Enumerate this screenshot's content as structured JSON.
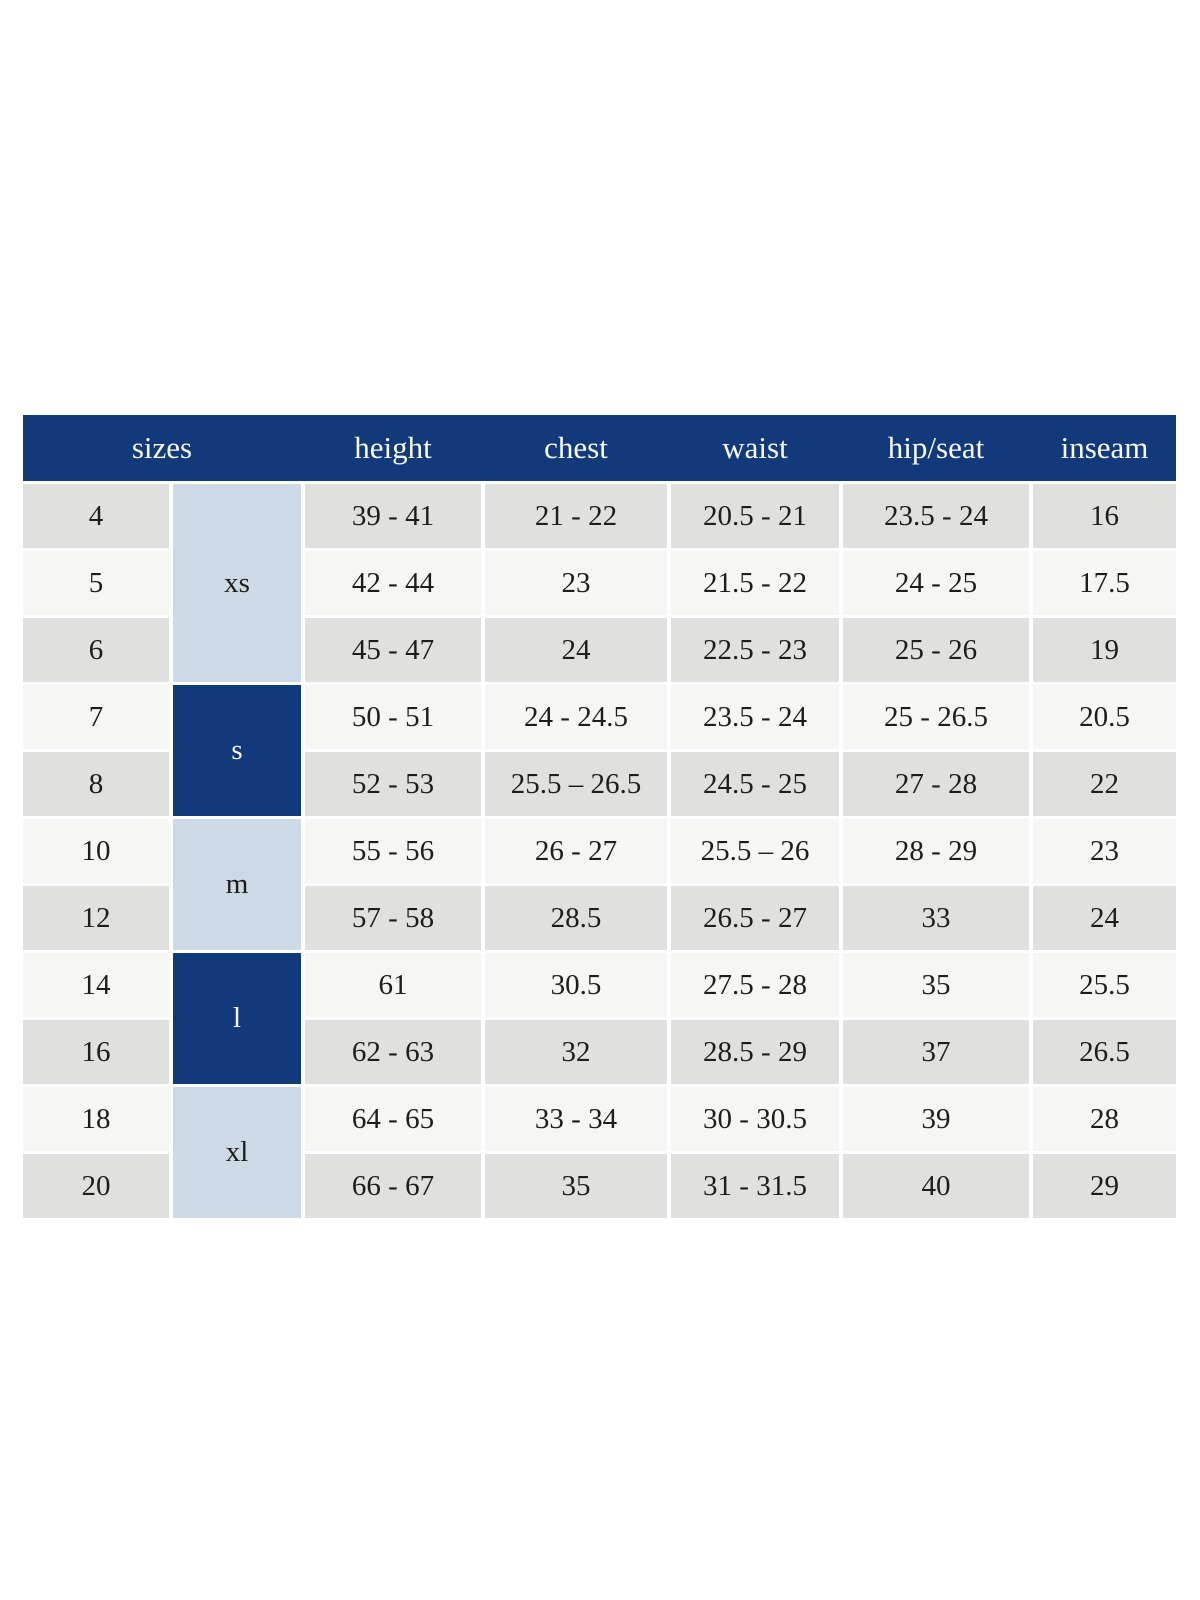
{
  "colors": {
    "header_bg": "#123a7b",
    "header_text": "#fafafa",
    "group_dark_bg": "#123a7b",
    "group_dark_text": "#ffffff",
    "group_light_bg": "#cdd9e5",
    "row_gray": "#e0e0df",
    "row_light": "#f6f6f5",
    "cell_text": "#1d1d1b",
    "page_bg": "#ffffff"
  },
  "table": {
    "columns": [
      "sizes",
      "height",
      "chest",
      "waist",
      "hip/seat",
      "inseam"
    ],
    "groups": [
      {
        "label": "xs",
        "tone": "light",
        "row_span": 3
      },
      {
        "label": "s",
        "tone": "dark",
        "row_span": 2
      },
      {
        "label": "m",
        "tone": "light",
        "row_span": 2
      },
      {
        "label": "l",
        "tone": "dark",
        "row_span": 2
      },
      {
        "label": "xl",
        "tone": "light",
        "row_span": 2
      }
    ],
    "rows": [
      {
        "size": "4",
        "group": "xs",
        "height": "39 - 41",
        "chest": "21 - 22",
        "waist": "20.5 - 21",
        "hip_seat": "23.5 - 24",
        "inseam": "16"
      },
      {
        "size": "5",
        "group": "xs",
        "height": "42 - 44",
        "chest": "23",
        "waist": "21.5 - 22",
        "hip_seat": "24 - 25",
        "inseam": "17.5"
      },
      {
        "size": "6",
        "group": "xs",
        "height": "45 - 47",
        "chest": "24",
        "waist": "22.5 - 23",
        "hip_seat": "25 - 26",
        "inseam": "19"
      },
      {
        "size": "7",
        "group": "s",
        "height": "50 - 51",
        "chest": "24 - 24.5",
        "waist": "23.5 - 24",
        "hip_seat": "25 - 26.5",
        "inseam": "20.5"
      },
      {
        "size": "8",
        "group": "s",
        "height": "52 - 53",
        "chest": "25.5 – 26.5",
        "waist": "24.5 - 25",
        "hip_seat": "27 - 28",
        "inseam": "22"
      },
      {
        "size": "10",
        "group": "m",
        "height": "55 - 56",
        "chest": "26 - 27",
        "waist": "25.5 – 26",
        "hip_seat": "28 - 29",
        "inseam": "23"
      },
      {
        "size": "12",
        "group": "m",
        "height": "57 - 58",
        "chest": "28.5",
        "waist": "26.5 - 27",
        "hip_seat": "33",
        "inseam": "24"
      },
      {
        "size": "14",
        "group": "l",
        "height": "61",
        "chest": "30.5",
        "waist": "27.5 - 28",
        "hip_seat": "35",
        "inseam": "25.5"
      },
      {
        "size": "16",
        "group": "l",
        "height": "62 - 63",
        "chest": "32",
        "waist": "28.5 - 29",
        "hip_seat": "37",
        "inseam": "26.5"
      },
      {
        "size": "18",
        "group": "xl",
        "height": "64 - 65",
        "chest": "33 - 34",
        "waist": "30 - 30.5",
        "hip_seat": "39",
        "inseam": "28"
      },
      {
        "size": "20",
        "group": "xl",
        "height": "66 - 67",
        "chest": "35",
        "waist": "31 - 31.5",
        "hip_seat": "40",
        "inseam": "29"
      }
    ]
  }
}
